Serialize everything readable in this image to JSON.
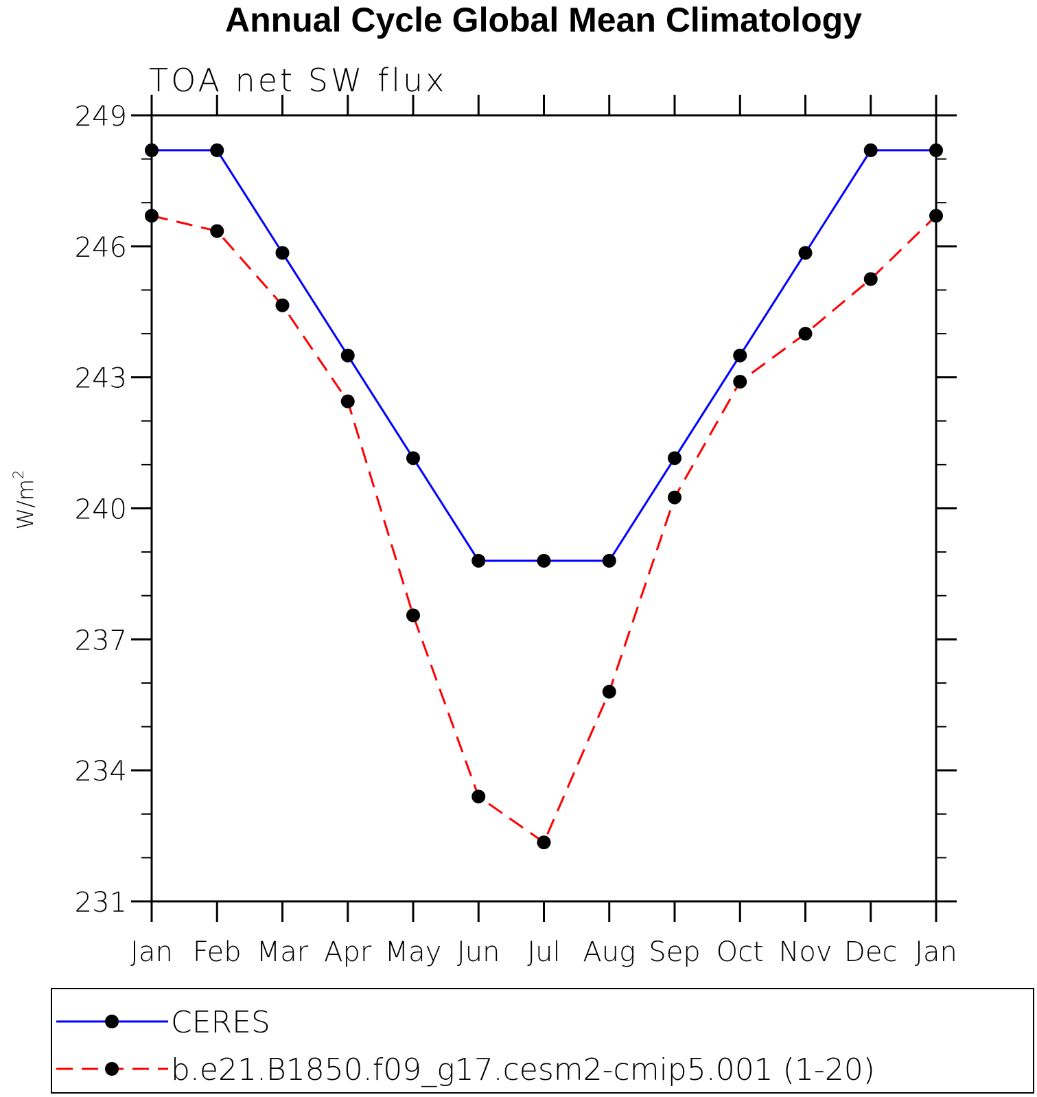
{
  "chart_data": {
    "type": "line",
    "title": "Annual Cycle Global Mean Climatology",
    "subtitle": "TOA net SW flux",
    "xlabel": "",
    "ylabel": "W/m",
    "ylabel_superscript": "2",
    "categories": [
      "Jan",
      "Feb",
      "Mar",
      "Apr",
      "May",
      "Jun",
      "Jul",
      "Aug",
      "Sep",
      "Oct",
      "Nov",
      "Dec",
      "Jan"
    ],
    "y_ticks": [
      231,
      234,
      237,
      240,
      243,
      246,
      249
    ],
    "ylim": [
      231,
      249
    ],
    "grid": false,
    "legend_position": "bottom",
    "series": [
      {
        "name": "CERES",
        "color": "#0000ff",
        "line_style": "solid",
        "marker": "filled-circle",
        "values": [
          248.2,
          248.2,
          245.85,
          243.5,
          241.15,
          238.8,
          238.8,
          238.8,
          241.15,
          243.5,
          245.85,
          248.2,
          248.2
        ]
      },
      {
        "name": "b.e21.B1850.f09_g17.cesm2-cmip5.001 (1-20)",
        "color": "#ff0000",
        "line_style": "dashed",
        "marker": "filled-circle",
        "values": [
          246.7,
          246.35,
          244.65,
          242.45,
          237.55,
          233.4,
          232.35,
          235.8,
          240.25,
          242.9,
          244.0,
          245.25,
          246.7
        ]
      }
    ]
  }
}
